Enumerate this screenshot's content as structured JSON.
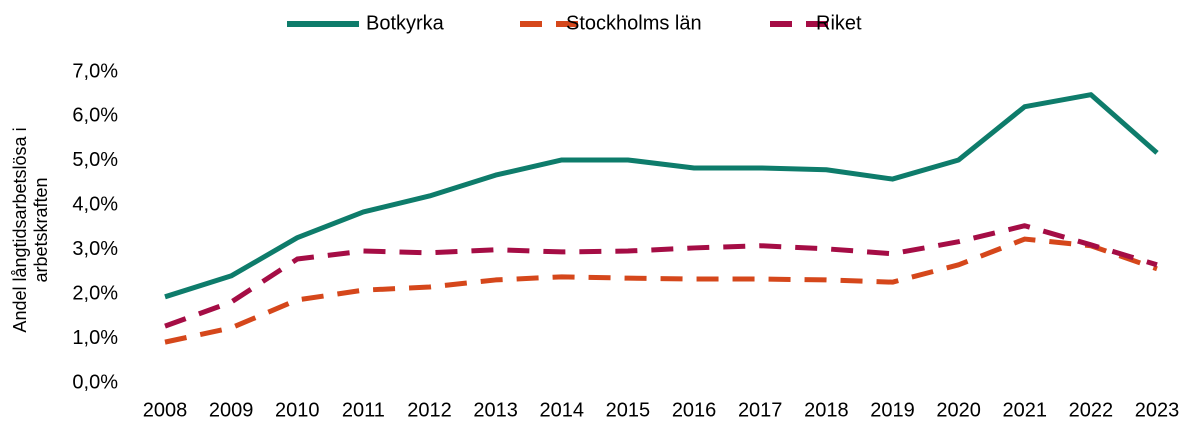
{
  "chart_data": {
    "type": "line",
    "ylabel": [
      "Andel långtidsarbetslösa i",
      "arbetskraften"
    ],
    "categories": [
      "2008",
      "2009",
      "2010",
      "2011",
      "2012",
      "2013",
      "2014",
      "2015",
      "2016",
      "2017",
      "2018",
      "2019",
      "2020",
      "2021",
      "2022",
      "2023"
    ],
    "series": [
      {
        "name": "Botkyrka",
        "color": "#0e7c6b",
        "dashed": false,
        "values": [
          1.94,
          2.41,
          3.27,
          3.85,
          4.21,
          4.68,
          5.02,
          5.02,
          4.84,
          4.84,
          4.8,
          4.59,
          5.02,
          6.22,
          6.49,
          5.18
        ]
      },
      {
        "name": "Stockholms län",
        "color": "#d5471b",
        "dashed": true,
        "values": [
          0.92,
          1.24,
          1.87,
          2.09,
          2.16,
          2.32,
          2.39,
          2.36,
          2.34,
          2.34,
          2.32,
          2.27,
          2.66,
          3.24,
          3.09,
          2.57
        ]
      },
      {
        "name": "Riket",
        "color": "#a50d45",
        "dashed": true,
        "values": [
          1.28,
          1.82,
          2.79,
          2.97,
          2.93,
          3.0,
          2.95,
          2.97,
          3.04,
          3.09,
          3.02,
          2.91,
          3.18,
          3.54,
          3.11,
          2.66
        ]
      }
    ],
    "ylim": [
      0,
      7
    ],
    "yticks": [
      {
        "value": 0,
        "label": "0,0%"
      },
      {
        "value": 1,
        "label": "1,0%"
      },
      {
        "value": 2,
        "label": "2,0%"
      },
      {
        "value": 3,
        "label": "3,0%"
      },
      {
        "value": 4,
        "label": "4,0%"
      },
      {
        "value": 5,
        "label": "5,0%"
      },
      {
        "value": 6,
        "label": "6,0%"
      },
      {
        "value": 7,
        "label": "7,0%"
      }
    ],
    "grid": false,
    "legend": "top"
  }
}
